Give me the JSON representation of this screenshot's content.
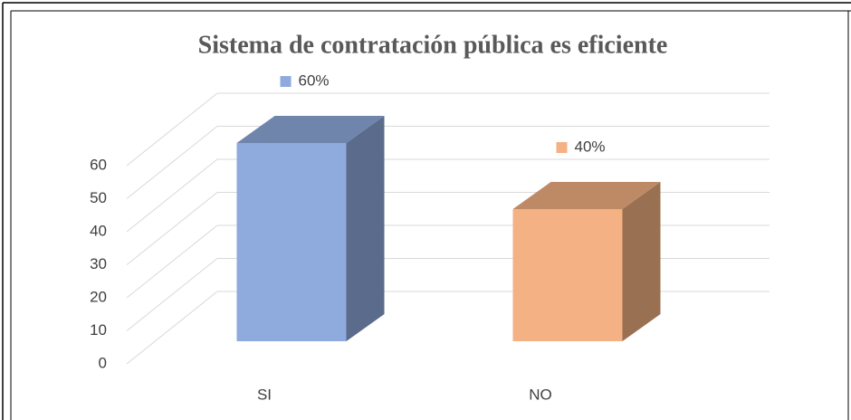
{
  "chart_data": {
    "type": "bar3d",
    "title": "Sistema de contratación pública es eficiente",
    "categories": [
      "SI",
      "NO"
    ],
    "values": [
      60,
      40
    ],
    "value_labels": [
      "60%",
      "40%"
    ],
    "colors": [
      "#8faadc",
      "#f4b183"
    ],
    "ylim": [
      0,
      60
    ],
    "yticks": [
      0,
      10,
      20,
      30,
      40,
      50,
      60
    ],
    "grid": true
  }
}
